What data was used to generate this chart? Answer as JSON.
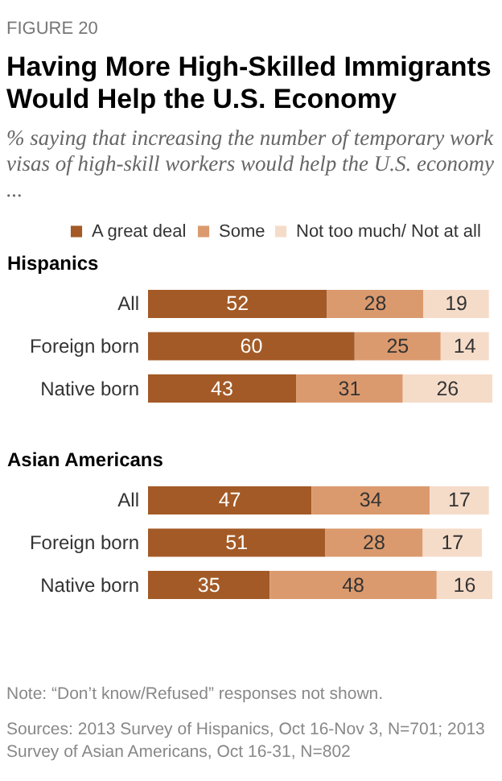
{
  "chart_data": [
    {
      "type": "bar",
      "orientation": "horizontal",
      "stacked": true,
      "data_labels": true,
      "tick_labels": "y",
      "legend": "top",
      "title": "Having More High-Skilled Immigrants Would Help the U.S. Economy",
      "subtitle": "% saying that increasing the number of temporary work visas of high-skill workers would help the U.S. economy ...",
      "annotations": [
        "FIGURE 20"
      ],
      "ylabel": "Hispanics",
      "categories": [
        "All",
        "Foreign born",
        "Native born"
      ],
      "series": [
        {
          "name": "A great deal",
          "color": "#a35a26",
          "values": [
            52,
            60,
            43
          ]
        },
        {
          "name": "Some",
          "color": "#db9a6e",
          "values": [
            28,
            25,
            31
          ]
        },
        {
          "name": "Not too much/ Not at all",
          "color": "#f5dcc9",
          "values": [
            19,
            14,
            26
          ]
        }
      ]
    },
    {
      "type": "bar",
      "orientation": "horizontal",
      "stacked": true,
      "data_labels": true,
      "tick_labels": "y",
      "ylabel": "Asian Americans",
      "annotations": [
        "Note: “Don’t know/Refused” responses not shown.",
        "Sources: 2013 Survey of Hispanics, Oct 16-Nov 3, N=701; 2013 Survey of Asian Americans, Oct 16-31, N=802"
      ],
      "categories": [
        "All",
        "Foreign born",
        "Native born"
      ],
      "series": [
        {
          "color": "#a35a26",
          "values": [
            47,
            51,
            35
          ]
        },
        {
          "color": "#db9a6e",
          "values": [
            34,
            28,
            48
          ]
        },
        {
          "color": "#f5dcc9",
          "values": [
            17,
            17,
            16
          ]
        }
      ]
    }
  ]
}
